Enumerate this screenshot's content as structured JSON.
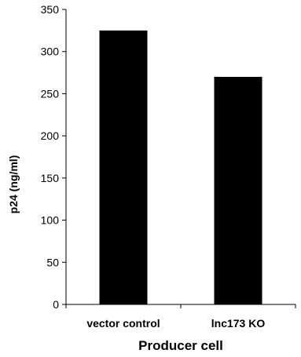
{
  "chart_data": {
    "type": "bar",
    "categories": [
      "vector control",
      "lnc173 KO"
    ],
    "values": [
      325,
      270
    ],
    "title": "",
    "xlabel": "Producer cell",
    "ylabel": "p24 (ng/ml)",
    "ylim": [
      0,
      350
    ],
    "yticks": [
      0,
      50,
      100,
      150,
      200,
      250,
      300,
      350
    ],
    "grid": false,
    "bar_color": "#000000"
  }
}
